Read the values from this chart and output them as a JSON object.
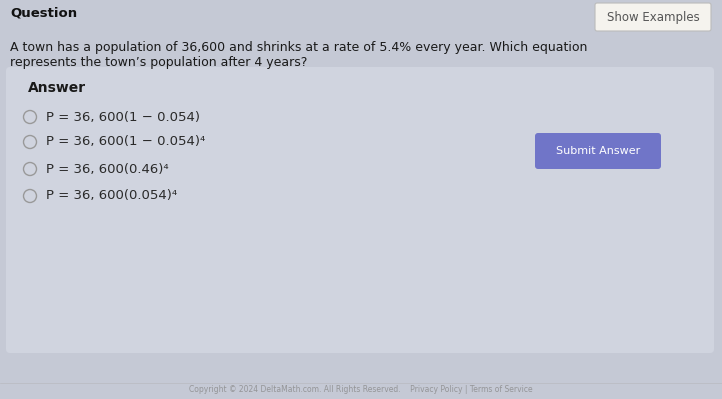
{
  "page_bg": "#c5c9d5",
  "question_label": "Question",
  "show_examples_btn": "Show Examples",
  "question_text_line1": "A town has a population of 36,600 and shrinks at a rate of 5.4% every year. Which equation",
  "question_text_line2": "represents the town’s population after 4 years?",
  "answer_label": "Answer",
  "options": [
    "P = 36, 600(1 − 0.054)",
    "P = 36, 600(1 − 0.054)⁴",
    "P = 36, 600(0.46)⁴",
    "P = 36, 600(0.054)⁴"
  ],
  "submit_btn_text": "Submit Answer",
  "submit_btn_color": "#7075c8",
  "submit_btn_text_color": "#ffffff",
  "answer_box_color": "#d0d4df",
  "radio_color": "#999999",
  "radio_fill": "#d0d4df",
  "option_text_color": "#2a2a2a",
  "question_text_color": "#1a1a1a",
  "answer_label_color": "#1a1a1a",
  "show_examples_border": "#bbbbbb",
  "show_examples_bg": "#f5f3ee",
  "show_examples_text_color": "#555555",
  "question_label_color": "#111111",
  "footer_text": "Copyright © 2024 DeltaMath.com. All Rights Reserved.    Privacy Policy | Terms of Service",
  "footer_color": "#888888"
}
